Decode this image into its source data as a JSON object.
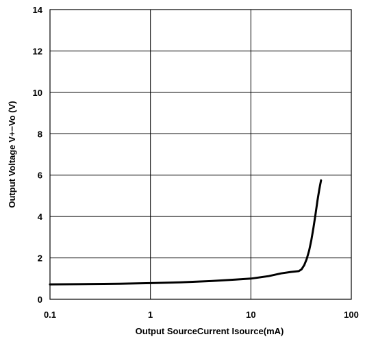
{
  "chart_data": {
    "type": "line",
    "title": "",
    "xlabel": "Output SourceCurrent   Isource(mA)",
    "ylabel": "Output Voltage  V+−Vo  (V)",
    "x_scale": "log",
    "xlim": [
      0.1,
      100
    ],
    "ylim": [
      0,
      14
    ],
    "x_ticks": [
      0.1,
      1,
      10,
      100
    ],
    "x_tick_labels": [
      "0.1",
      "1",
      "10",
      "100"
    ],
    "y_ticks": [
      0,
      2,
      4,
      6,
      8,
      10,
      12,
      14
    ],
    "y_tick_labels": [
      "0",
      "2",
      "4",
      "6",
      "8",
      "10",
      "12",
      "14"
    ],
    "grid": true,
    "line_color": "#000000",
    "series": [
      {
        "x": [
          0.1,
          0.2,
          0.5,
          1,
          2,
          4,
          7,
          10,
          15,
          20,
          25,
          30,
          32,
          34,
          36,
          38,
          40,
          42,
          44,
          46,
          48,
          50
        ],
        "y": [
          0.72,
          0.73,
          0.75,
          0.78,
          0.82,
          0.88,
          0.95,
          1.0,
          1.12,
          1.25,
          1.32,
          1.36,
          1.45,
          1.65,
          1.95,
          2.35,
          2.85,
          3.45,
          4.1,
          4.75,
          5.3,
          5.75
        ]
      }
    ]
  }
}
